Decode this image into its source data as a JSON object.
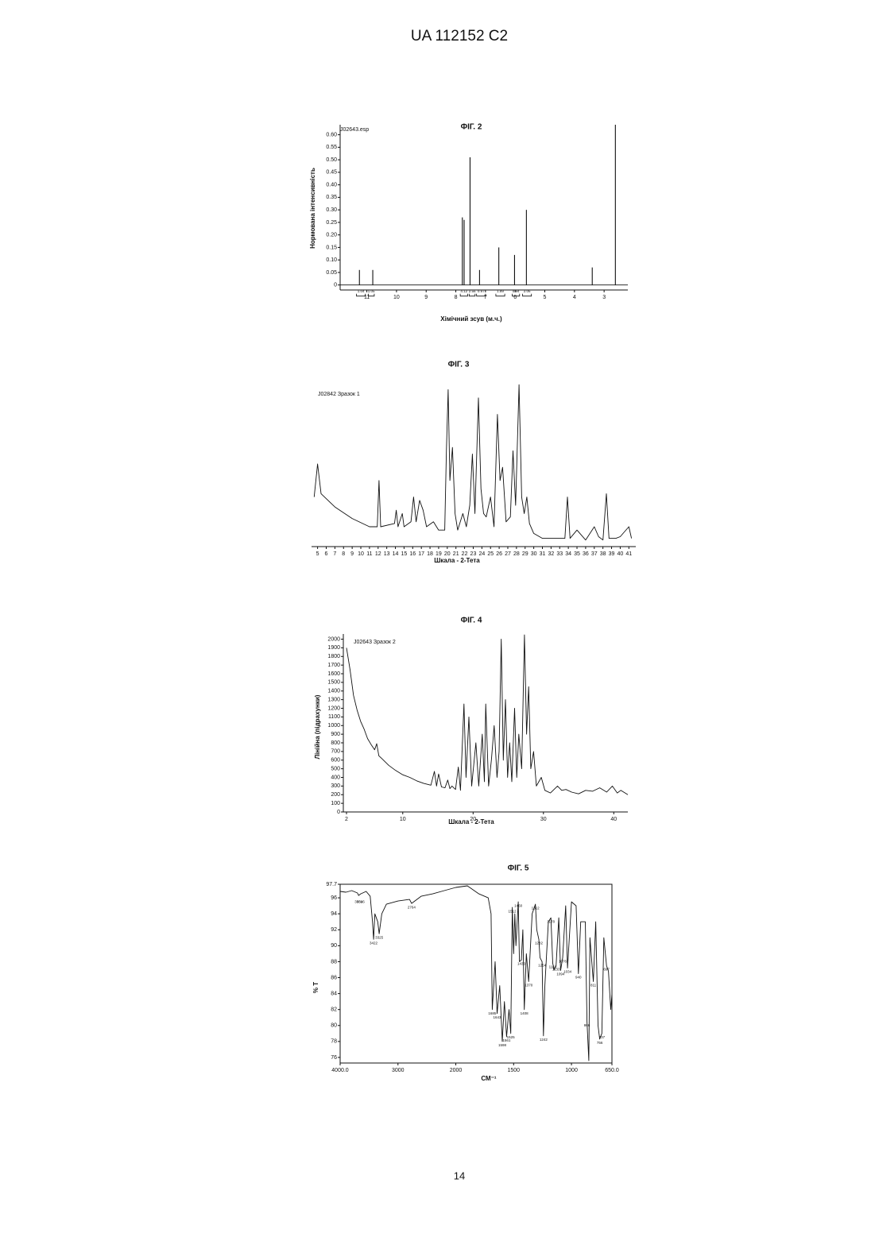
{
  "header": {
    "title": "UA   112152   C2"
  },
  "footer": {
    "page": "14"
  },
  "chart_data": [
    {
      "type": "peaks",
      "title": "ФІГ. 2",
      "annotation": "J02643.esp",
      "y_label": "Нормована інтенсивність",
      "x_label": "Хімічний зсув (м.ч.)",
      "color": "#111111",
      "x": [
        11.25,
        10.8,
        7.78,
        7.72,
        7.52,
        7.2,
        6.55,
        6.02,
        5.62,
        3.4,
        2.62
      ],
      "values": [
        0.06,
        0.06,
        0.27,
        0.26,
        0.51,
        0.06,
        0.15,
        0.12,
        0.3,
        0.07,
        0.64
      ],
      "integrals": [
        {
          "range": [
            11.35,
            11.05
          ],
          "value": 1.04
        },
        {
          "range": [
            10.95,
            10.75
          ],
          "value": 1.05
        },
        {
          "range": [
            7.85,
            7.6
          ],
          "value": 4.12
        },
        {
          "range": [
            7.55,
            7.35
          ],
          "value": 2.56
        },
        {
          "range": [
            7.3,
            7.0
          ],
          "value": 0.97
        },
        {
          "range": [
            6.65,
            6.35
          ],
          "value": 1.89
        },
        {
          "range": [
            6.1,
            5.85
          ],
          "value": 0.94
        },
        {
          "range": [
            5.75,
            5.45
          ],
          "value": 2.06
        }
      ],
      "xlim": [
        11.9,
        2.2
      ],
      "ylim": [
        -0.02,
        0.64
      ],
      "xticks": [
        11,
        10,
        9,
        8,
        7,
        6,
        5,
        4,
        3
      ],
      "yticks": [
        0,
        0.05,
        {
          "value": 0.1,
          "label": "0.10"
        },
        0.15,
        {
          "value": 0.2,
          "label": "0.20"
        },
        0.25,
        {
          "value": 0.3,
          "label": "0.30"
        },
        0.35,
        {
          "value": 0.4,
          "label": "0.40"
        },
        0.45,
        {
          "value": 0.5,
          "label": "0.50"
        },
        0.55,
        {
          "value": 0.6,
          "label": "0.60"
        }
      ]
    },
    {
      "type": "line",
      "title": "ФІГ. 3",
      "annotation": "J02842 Зразок 1",
      "x_label": "Шкала - 2-Тета",
      "color": "#111111",
      "x": [
        4.6,
        5,
        5.4,
        7,
        9,
        11,
        11.9,
        12.1,
        12.3,
        13.9,
        14.1,
        14.3,
        14.8,
        15,
        15.8,
        16.1,
        16.4,
        16.8,
        17.2,
        17.6,
        18.4,
        19,
        19.7,
        19.9,
        20.1,
        20.3,
        20.6,
        20.9,
        21.2,
        21.8,
        22.2,
        22.6,
        22.9,
        23.2,
        23.6,
        23.9,
        24.2,
        24.5,
        25,
        25.4,
        25.8,
        26.1,
        26.4,
        26.8,
        27.3,
        27.6,
        27.9,
        28.3,
        28.6,
        28.9,
        29.2,
        29.5,
        30,
        31,
        32,
        33,
        33.6,
        33.9,
        34.2,
        35,
        36,
        37,
        37.5,
        38,
        38.4,
        38.7,
        39.5,
        40,
        41,
        41.3
      ],
      "values": [
        30,
        50,
        32,
        24,
        17,
        12,
        12,
        40,
        12,
        14,
        22,
        12,
        20,
        12,
        15,
        30,
        15,
        28,
        22,
        12,
        15,
        10,
        10,
        58,
        95,
        40,
        60,
        20,
        10,
        20,
        12,
        25,
        56,
        20,
        90,
        35,
        20,
        18,
        30,
        12,
        80,
        40,
        48,
        15,
        18,
        58,
        25,
        98,
        30,
        20,
        30,
        14,
        8,
        5,
        5,
        5,
        5,
        30,
        5,
        10,
        4,
        12,
        6,
        4,
        32,
        5,
        5,
        6,
        12,
        5
      ],
      "xlim": [
        4.3,
        41.8
      ],
      "ylim": [
        0,
        100
      ],
      "xticks": [
        5,
        6,
        7,
        8,
        9,
        10,
        11,
        12,
        13,
        14,
        15,
        16,
        17,
        18,
        19,
        20,
        21,
        22,
        23,
        24,
        25,
        26,
        27,
        28,
        29,
        30,
        31,
        32,
        33,
        34,
        35,
        36,
        37,
        38,
        39,
        40,
        41
      ]
    },
    {
      "type": "line",
      "title": "ФІГ. 4",
      "annotation": "J02643 Зразок 2",
      "y_label": "Лінійна (підрахунки)",
      "x_label": "Шкала - 2-Тета",
      "color": "#111111",
      "x": [
        2,
        2.5,
        3,
        3.5,
        4,
        4.5,
        5,
        5.5,
        6,
        6.3,
        6.6,
        7,
        8,
        9,
        10,
        11,
        12,
        13,
        14,
        14.5,
        14.8,
        15.1,
        15.5,
        16,
        16.4,
        16.7,
        17,
        17.5,
        17.9,
        18.2,
        18.7,
        19,
        19.4,
        19.8,
        20.4,
        20.8,
        21.3,
        21.6,
        21.8,
        22.2,
        22.6,
        23,
        23.4,
        23.7,
        24,
        24.3,
        24.6,
        24.9,
        25.2,
        25.5,
        25.9,
        26.2,
        26.5,
        26.9,
        27.3,
        27.6,
        27.9,
        28.2,
        28.6,
        29,
        29.7,
        30.2,
        31,
        32,
        32.6,
        33.2,
        34,
        35,
        36,
        37,
        38,
        39,
        39.8,
        40.5,
        41,
        42
      ],
      "values": [
        1900,
        1650,
        1350,
        1180,
        1050,
        960,
        850,
        780,
        720,
        790,
        650,
        620,
        540,
        480,
        430,
        400,
        360,
        330,
        310,
        470,
        300,
        440,
        290,
        280,
        370,
        270,
        300,
        260,
        520,
        250,
        1250,
        400,
        1100,
        300,
        800,
        300,
        900,
        350,
        1250,
        300,
        600,
        1000,
        400,
        700,
        2000,
        600,
        1300,
        400,
        800,
        350,
        1200,
        400,
        900,
        500,
        2050,
        900,
        1450,
        500,
        700,
        300,
        400,
        250,
        220,
        300,
        250,
        260,
        230,
        210,
        250,
        240,
        280,
        230,
        300,
        220,
        250,
        200
      ],
      "xlim": [
        1.55,
        42
      ],
      "ylim": [
        0,
        2060
      ],
      "xticks": [
        2,
        10,
        20,
        30,
        40
      ],
      "yticks": [
        0,
        100,
        200,
        300,
        400,
        500,
        600,
        700,
        800,
        900,
        1000,
        1100,
        1200,
        1300,
        1400,
        1500,
        1600,
        1700,
        1800,
        1900,
        2000
      ]
    },
    {
      "type": "line",
      "title": "ФІГ. 5",
      "y_label": "% T",
      "x_label": "СМ⁻¹",
      "color": "#111111",
      "x": [
        4000,
        3900,
        3800,
        3700,
        3681,
        3646,
        3550,
        3480,
        3440,
        3422,
        3400,
        3350,
        3325,
        3280,
        3200,
        3000,
        2800,
        2764,
        2600,
        2400,
        2200,
        2000,
        1900,
        1800,
        1720,
        1695,
        1685,
        1660,
        1643,
        1620,
        1598,
        1580,
        1561,
        1540,
        1525,
        1512,
        1500,
        1490,
        1480,
        1460,
        1450,
        1433,
        1420,
        1408,
        1390,
        1370,
        1340,
        1312,
        1300,
        1282,
        1272,
        1254,
        1242,
        1230,
        1200,
        1178,
        1162,
        1150,
        1133,
        1110,
        1094,
        1076,
        1050,
        1034,
        1000,
        960,
        940,
        920,
        880,
        866,
        850,
        840,
        811,
        790,
        770,
        756,
        737,
        720,
        697,
        680,
        660,
        650
      ],
      "values": [
        96.8,
        96.7,
        96.9,
        96.6,
        96.3,
        96.5,
        96.8,
        96.2,
        93,
        90.8,
        94,
        93,
        91.5,
        94,
        95.2,
        95.6,
        95.8,
        95.3,
        96.2,
        96.5,
        96.9,
        97.3,
        97.5,
        96.5,
        96,
        94,
        82,
        88,
        81.5,
        85,
        78,
        83,
        78.6,
        82,
        79,
        94.8,
        89,
        94,
        90,
        95.5,
        88,
        88.2,
        92,
        82,
        89,
        85.5,
        94,
        95.2,
        92,
        90.8,
        88.5,
        88,
        78.7,
        85,
        93,
        93.5,
        87.8,
        87,
        87.5,
        93.5,
        86.9,
        88.5,
        95,
        87.2,
        95.5,
        95,
        86.5,
        93,
        93,
        80.5,
        75.6,
        91,
        85.5,
        93,
        80,
        78.3,
        79,
        91,
        87.5,
        86.8,
        82,
        84
      ],
      "peak_labels": [
        {
          "x": 3681,
          "y": 96
        },
        {
          "x": 3646,
          "y": 96
        },
        {
          "x": 3422,
          "y": 90.8
        },
        {
          "x": 3325,
          "y": 91.5
        },
        {
          "x": 2764,
          "y": 95.3
        },
        {
          "x": 1685,
          "y": 82
        },
        {
          "x": 1643,
          "y": 81.5
        },
        {
          "x": 1598,
          "y": 78
        },
        {
          "x": 1561,
          "y": 78.6
        },
        {
          "x": 1525,
          "y": 79
        },
        {
          "x": 1512,
          "y": 94.8
        },
        {
          "x": 1460,
          "y": 95.5
        },
        {
          "x": 1433,
          "y": 88.2
        },
        {
          "x": 1408,
          "y": 82
        },
        {
          "x": 1370,
          "y": 85.5
        },
        {
          "x": 1312,
          "y": 95.2
        },
        {
          "x": 1282,
          "y": 90.8
        },
        {
          "x": 1254,
          "y": 88
        },
        {
          "x": 1242,
          "y": 78.7
        },
        {
          "x": 1178,
          "y": 93.5
        },
        {
          "x": 1162,
          "y": 87.8
        },
        {
          "x": 1133,
          "y": 87.5
        },
        {
          "x": 1094,
          "y": 86.9
        },
        {
          "x": 1076,
          "y": 88.5
        },
        {
          "x": 1034,
          "y": 87.2
        },
        {
          "x": 940,
          "y": 86.5
        },
        {
          "x": 866,
          "y": 80.5
        },
        {
          "x": 811,
          "y": 85.5
        },
        {
          "x": 756,
          "y": 78.3
        },
        {
          "x": 737,
          "y": 79
        },
        {
          "x": 697,
          "y": 87.5
        }
      ],
      "xlim": [
        4000,
        650
      ],
      "xbreak": 2000,
      "xbreak_factor": 2,
      "ylim": [
        75.3,
        97.7
      ],
      "xticks": [
        {
          "value": 4000,
          "label": "4000.0"
        },
        3000,
        2000,
        1500,
        1000,
        {
          "value": 650,
          "label": "650.0"
        }
      ],
      "yticks": [
        76,
        78,
        80,
        82,
        84,
        86,
        88,
        90,
        92,
        94,
        96,
        97.7
      ]
    }
  ]
}
